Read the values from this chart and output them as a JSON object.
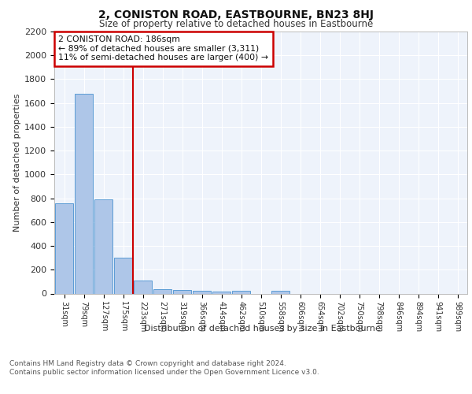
{
  "title": "2, CONISTON ROAD, EASTBOURNE, BN23 8HJ",
  "subtitle": "Size of property relative to detached houses in Eastbourne",
  "xlabel": "Distribution of detached houses by size in Eastbourne",
  "ylabel": "Number of detached properties",
  "bar_labels": [
    "31sqm",
    "79sqm",
    "127sqm",
    "175sqm",
    "223sqm",
    "271sqm",
    "319sqm",
    "366sqm",
    "414sqm",
    "462sqm",
    "510sqm",
    "558sqm",
    "606sqm",
    "654sqm",
    "702sqm",
    "750sqm",
    "798sqm",
    "846sqm",
    "894sqm",
    "941sqm",
    "989sqm"
  ],
  "bar_values": [
    760,
    1680,
    790,
    300,
    110,
    38,
    28,
    20,
    18,
    20,
    0,
    20,
    0,
    0,
    0,
    0,
    0,
    0,
    0,
    0,
    0
  ],
  "bar_color": "#aec6e8",
  "bar_edge_color": "#5b9bd5",
  "background_color": "#eef3fb",
  "grid_color": "#ffffff",
  "red_line_x": 3.5,
  "annotation_text": "2 CONISTON ROAD: 186sqm\n← 89% of detached houses are smaller (3,311)\n11% of semi-detached houses are larger (400) →",
  "annotation_box_color": "#ffffff",
  "annotation_box_edge": "#cc0000",
  "red_line_color": "#cc0000",
  "ylim": [
    0,
    2200
  ],
  "yticks": [
    0,
    200,
    400,
    600,
    800,
    1000,
    1200,
    1400,
    1600,
    1800,
    2000,
    2200
  ],
  "footnote": "Contains HM Land Registry data © Crown copyright and database right 2024.\nContains public sector information licensed under the Open Government Licence v3.0."
}
